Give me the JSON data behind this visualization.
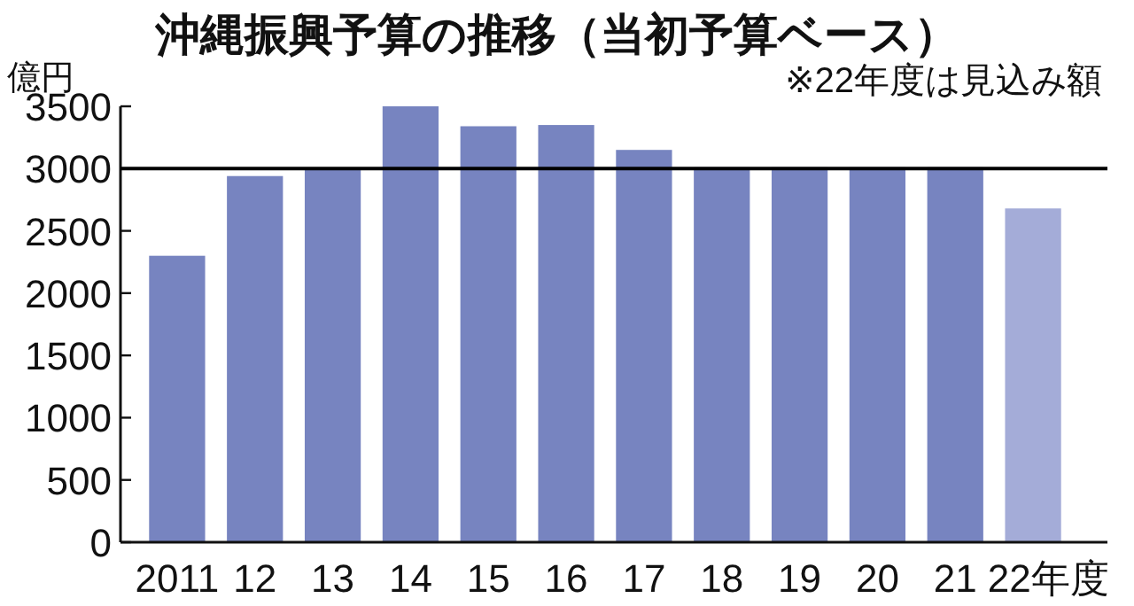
{
  "chart_data": {
    "type": "bar",
    "title": "沖縄振興予算の推移（当初予算ベース）",
    "annotations": [
      "※22年度は見込み額"
    ],
    "ylabel": "億円",
    "categories": [
      "2011",
      "12",
      "13",
      "14",
      "15",
      "16",
      "17",
      "18",
      "19",
      "20",
      "21",
      "22年度"
    ],
    "values": [
      2300,
      2940,
      3000,
      3500,
      3340,
      3350,
      3150,
      3010,
      3010,
      3010,
      3010,
      2680
    ],
    "colors": [
      "#7784c0",
      "#7784c0",
      "#7784c0",
      "#7784c0",
      "#7784c0",
      "#7784c0",
      "#7784c0",
      "#7784c0",
      "#7784c0",
      "#7784c0",
      "#7784c0",
      "#a4acd8"
    ],
    "ylim": [
      0,
      3500
    ],
    "yticks": [
      0,
      500,
      1000,
      1500,
      2000,
      2500,
      3000,
      3500
    ],
    "ref_lines": [
      {
        "axis": "y",
        "value": 3000,
        "color": "#000000"
      }
    ]
  }
}
